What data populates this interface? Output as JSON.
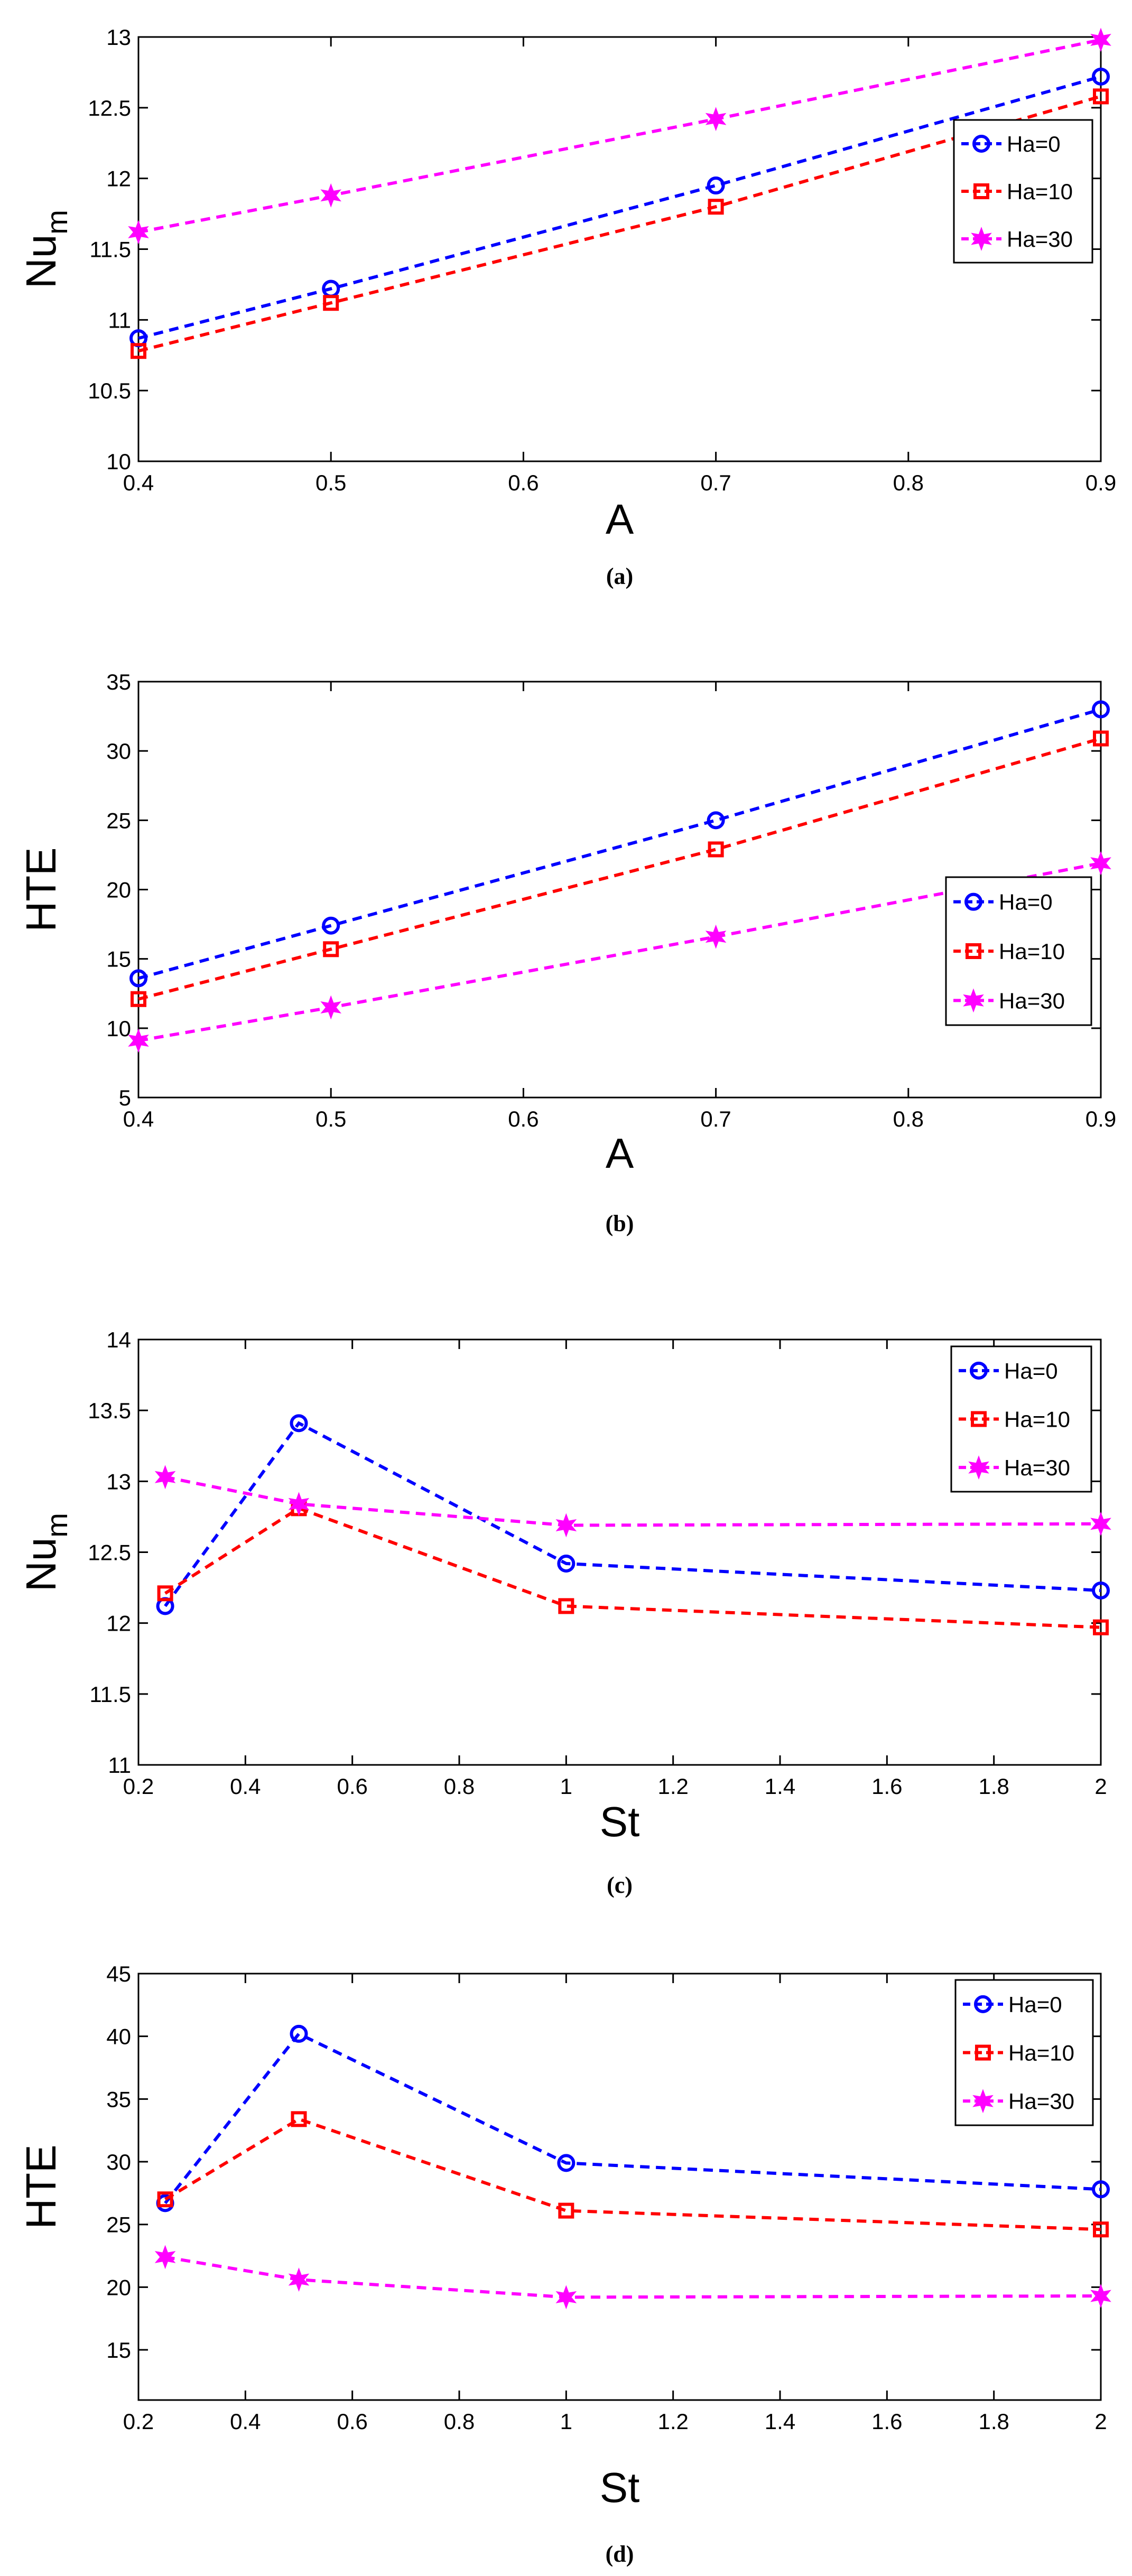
{
  "chart_data": [
    {
      "id": "a",
      "type": "line",
      "caption": "(a)",
      "xlabel": "A",
      "ylabel": "Nu",
      "ylabel_sub": "m",
      "xlim": [
        0.4,
        0.9
      ],
      "ylim": [
        10,
        13
      ],
      "xticks": [
        "0.4",
        "0.5",
        "0.6",
        "0.7",
        "0.8",
        "0.9"
      ],
      "yticks": [
        "10",
        "10.5",
        "11",
        "11.5",
        "12",
        "12.5",
        "13"
      ],
      "legend_position": "right",
      "x": [
        0.4,
        0.5,
        0.7,
        0.9
      ],
      "series": [
        {
          "name": "Ha=0",
          "color": "#0000ff",
          "marker": "circle",
          "values": [
            10.87,
            11.22,
            11.95,
            12.72
          ]
        },
        {
          "name": "Ha=10",
          "color": "#ff0000",
          "marker": "square",
          "values": [
            10.78,
            11.12,
            11.8,
            12.58
          ]
        },
        {
          "name": "Ha=30",
          "color": "#ff00ff",
          "marker": "star",
          "values": [
            11.62,
            11.88,
            12.42,
            12.98
          ]
        }
      ]
    },
    {
      "id": "b",
      "type": "line",
      "caption": "(b)",
      "xlabel": "A",
      "ylabel": "HTE",
      "ylabel_sub": "",
      "xlim": [
        0.4,
        0.9
      ],
      "ylim": [
        5,
        35
      ],
      "xticks": [
        "0.4",
        "0.5",
        "0.6",
        "0.7",
        "0.8",
        "0.9"
      ],
      "yticks": [
        "5",
        "10",
        "15",
        "20",
        "25",
        "30",
        "35"
      ],
      "legend_position": "bottom-right",
      "x": [
        0.4,
        0.5,
        0.7,
        0.9
      ],
      "series": [
        {
          "name": "Ha=0",
          "color": "#0000ff",
          "marker": "circle",
          "values": [
            13.6,
            17.4,
            25.0,
            33.0
          ]
        },
        {
          "name": "Ha=10",
          "color": "#ff0000",
          "marker": "square",
          "values": [
            12.1,
            15.7,
            22.9,
            30.9
          ]
        },
        {
          "name": "Ha=30",
          "color": "#ff00ff",
          "marker": "star",
          "values": [
            9.1,
            11.5,
            16.6,
            21.9
          ]
        }
      ]
    },
    {
      "id": "c",
      "type": "line",
      "caption": "(c)",
      "xlabel": "St",
      "ylabel": "Nu",
      "ylabel_sub": "m",
      "xlim": [
        0.2,
        2
      ],
      "ylim": [
        11,
        14
      ],
      "xticks": [
        "0.2",
        "0.4",
        "0.6",
        "0.8",
        "1",
        "1.2",
        "1.4",
        "1.6",
        "1.8",
        "2"
      ],
      "yticks": [
        "11",
        "11.5",
        "12",
        "12.5",
        "13",
        "13.5",
        "14"
      ],
      "legend_position": "top-right",
      "x": [
        0.25,
        0.5,
        1,
        2
      ],
      "series": [
        {
          "name": "Ha=0",
          "color": "#0000ff",
          "marker": "circle",
          "values": [
            12.12,
            13.41,
            12.42,
            12.23
          ]
        },
        {
          "name": "Ha=10",
          "color": "#ff0000",
          "marker": "square",
          "values": [
            12.21,
            12.81,
            12.12,
            11.97
          ]
        },
        {
          "name": "Ha=30",
          "color": "#ff00ff",
          "marker": "star",
          "values": [
            13.03,
            12.84,
            12.69,
            12.7
          ]
        }
      ]
    },
    {
      "id": "d",
      "type": "line",
      "caption": "(d)",
      "xlabel": "St",
      "ylabel": "HTE",
      "ylabel_sub": "",
      "xlim": [
        0.2,
        2
      ],
      "ylim": [
        11,
        45
      ],
      "xticks": [
        "0.2",
        "0.4",
        "0.6",
        "0.8",
        "1",
        "1.2",
        "1.4",
        "1.6",
        "1.8",
        "2"
      ],
      "yticks": [
        "15",
        "20",
        "25",
        "30",
        "35",
        "40",
        "45"
      ],
      "legend_position": "top-right",
      "x": [
        0.25,
        0.5,
        1,
        2
      ],
      "series": [
        {
          "name": "Ha=0",
          "color": "#0000ff",
          "marker": "circle",
          "values": [
            26.7,
            40.2,
            29.9,
            27.8
          ]
        },
        {
          "name": "Ha=10",
          "color": "#ff0000",
          "marker": "square",
          "values": [
            27.0,
            33.4,
            26.1,
            24.6
          ]
        },
        {
          "name": "Ha=30",
          "color": "#ff00ff",
          "marker": "star",
          "values": [
            22.4,
            20.6,
            19.2,
            19.3
          ]
        }
      ]
    }
  ]
}
